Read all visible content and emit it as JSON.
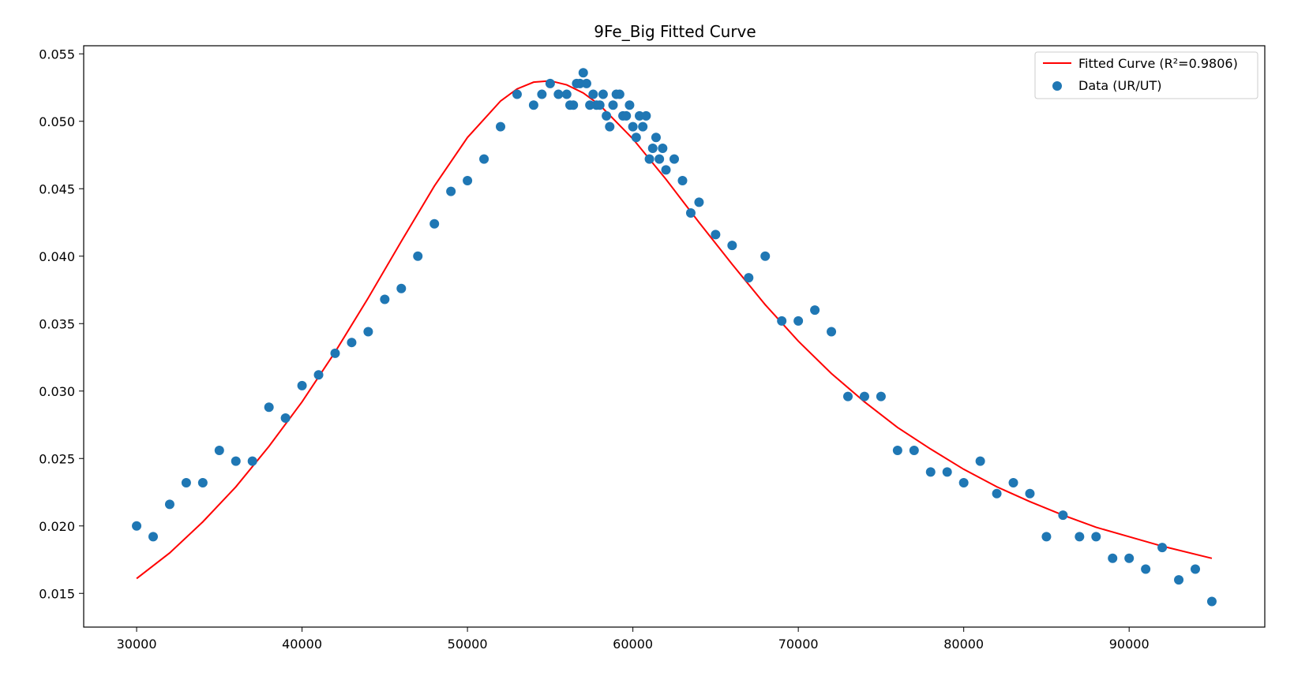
{
  "chart_data": {
    "type": "scatter",
    "title": "9Fe_Big Fitted Curve",
    "xlabel": "",
    "ylabel": "",
    "xlim": [
      26800,
      98200
    ],
    "ylim": [
      0.0125,
      0.0556
    ],
    "x_ticks": [
      30000,
      40000,
      50000,
      60000,
      70000,
      80000,
      90000
    ],
    "y_ticks": [
      0.015,
      0.02,
      0.025,
      0.03,
      0.035,
      0.04,
      0.045,
      0.05,
      0.055
    ],
    "x_tick_labels": [
      "30000",
      "40000",
      "50000",
      "60000",
      "70000",
      "80000",
      "90000"
    ],
    "y_tick_labels": [
      "0.015",
      "0.020",
      "0.025",
      "0.030",
      "0.035",
      "0.040",
      "0.045",
      "0.050",
      "0.055"
    ],
    "grid": false,
    "legend_position": "top-right",
    "legend": {
      "fit_label": "Fitted Curve (R²=0.9806)",
      "data_label": "Data (UR/UT)"
    },
    "colors": {
      "fit": "#ff0000",
      "data": "#1f77b4"
    },
    "series": [
      {
        "name": "Data (UR/UT)",
        "kind": "scatter",
        "x": [
          30000,
          31000,
          32000,
          33000,
          34000,
          35000,
          36000,
          37000,
          38000,
          39000,
          40000,
          41000,
          42000,
          43000,
          44000,
          45000,
          46000,
          47000,
          48000,
          49000,
          50000,
          51000,
          52000,
          53000,
          54000,
          54500,
          55000,
          55500,
          56000,
          56200,
          56400,
          56600,
          56800,
          57000,
          57200,
          57400,
          57600,
          57800,
          58000,
          58200,
          58400,
          58600,
          58800,
          59000,
          59200,
          59400,
          59600,
          59800,
          60000,
          60200,
          60400,
          60600,
          60800,
          61000,
          61200,
          61400,
          61600,
          61800,
          62000,
          62500,
          63000,
          63500,
          64000,
          65000,
          66000,
          67000,
          68000,
          69000,
          70000,
          71000,
          72000,
          73000,
          74000,
          75000,
          76000,
          77000,
          78000,
          79000,
          80000,
          81000,
          82000,
          83000,
          84000,
          85000,
          86000,
          87000,
          88000,
          89000,
          90000,
          91000,
          92000,
          93000,
          94000,
          95000
        ],
        "y": [
          0.02,
          0.0192,
          0.0216,
          0.0232,
          0.0232,
          0.0256,
          0.0248,
          0.0248,
          0.0288,
          0.028,
          0.0304,
          0.0312,
          0.0328,
          0.0336,
          0.0344,
          0.0368,
          0.0376,
          0.04,
          0.0424,
          0.0448,
          0.0456,
          0.0472,
          0.0496,
          0.052,
          0.0512,
          0.052,
          0.0528,
          0.052,
          0.052,
          0.0512,
          0.0512,
          0.0528,
          0.0528,
          0.0536,
          0.0528,
          0.0512,
          0.052,
          0.0512,
          0.0512,
          0.052,
          0.0504,
          0.0496,
          0.0512,
          0.052,
          0.052,
          0.0504,
          0.0504,
          0.0512,
          0.0496,
          0.0488,
          0.0504,
          0.0496,
          0.0504,
          0.0472,
          0.048,
          0.0488,
          0.0472,
          0.048,
          0.0464,
          0.0472,
          0.0456,
          0.0432,
          0.044,
          0.0416,
          0.0408,
          0.0384,
          0.04,
          0.0352,
          0.0352,
          0.036,
          0.0344,
          0.0296,
          0.0296,
          0.0296,
          0.0256,
          0.0256,
          0.024,
          0.024,
          0.0232,
          0.0248,
          0.0224,
          0.0232,
          0.0224,
          0.0192,
          0.0208,
          0.0192,
          0.0192,
          0.0176,
          0.0176,
          0.0168,
          0.0184,
          0.016,
          0.0168,
          0.0144
        ]
      },
      {
        "name": "Fitted Curve (R²=0.9806)",
        "kind": "line",
        "x": [
          30000,
          32000,
          34000,
          36000,
          38000,
          40000,
          42000,
          44000,
          46000,
          48000,
          50000,
          52000,
          53000,
          54000,
          55000,
          56000,
          57000,
          58000,
          60000,
          62000,
          64000,
          66000,
          68000,
          70000,
          72000,
          74000,
          76000,
          78000,
          80000,
          82000,
          84000,
          86000,
          88000,
          90000,
          92000,
          95000
        ],
        "y": [
          0.0161,
          0.018,
          0.0203,
          0.0229,
          0.0259,
          0.0292,
          0.0329,
          0.0369,
          0.0411,
          0.0452,
          0.0488,
          0.0515,
          0.0524,
          0.0529,
          0.053,
          0.0527,
          0.0521,
          0.0512,
          0.0487,
          0.0457,
          0.0425,
          0.0394,
          0.0364,
          0.0337,
          0.0313,
          0.0292,
          0.0273,
          0.0257,
          0.0242,
          0.0229,
          0.0218,
          0.0208,
          0.0199,
          0.0192,
          0.0185,
          0.0176
        ]
      }
    ]
  }
}
